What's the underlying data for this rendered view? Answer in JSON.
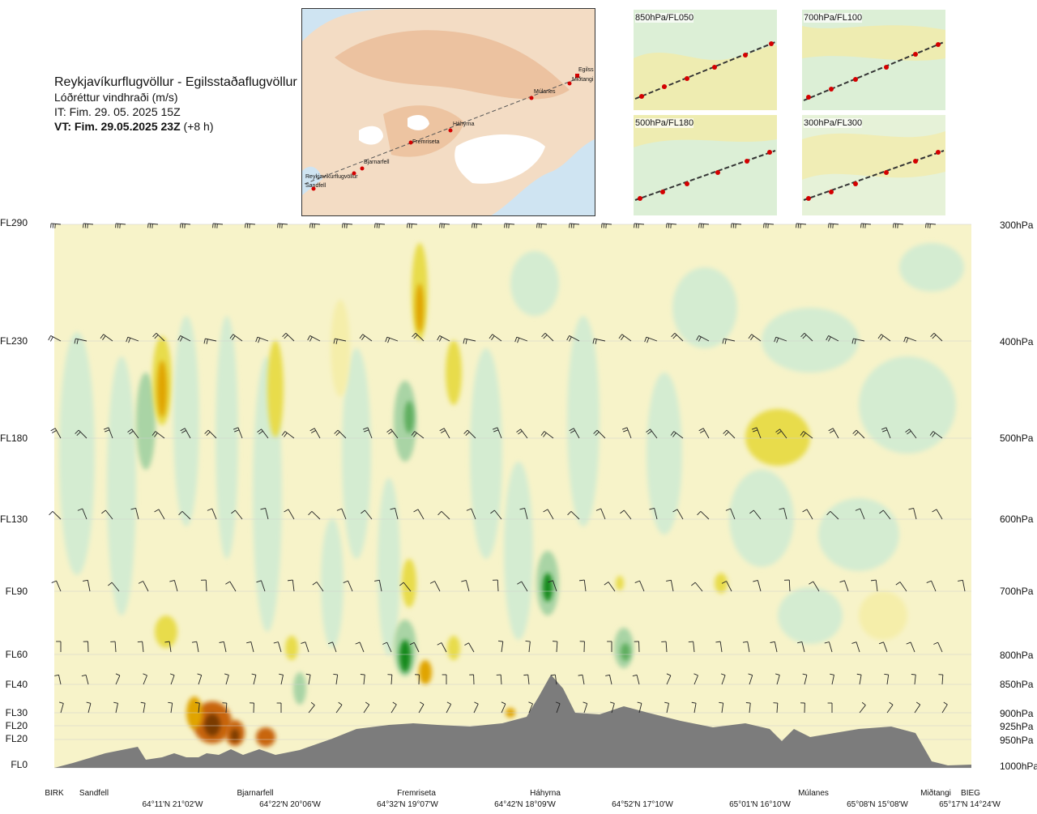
{
  "title": {
    "main": "Reykjavíkurflugvöllur - Egilsstaðaflugvöllur",
    "subtitle": "Lóðréttur vindhraði (m/s)",
    "issue_time": "IT: Fim. 29. 05. 2025 15Z",
    "valid_time_bold": "VT: Fim. 29.05.2025 23Z",
    "valid_time_offset": "(+8 h)"
  },
  "map": {
    "places": [
      "Reykjavíkurflugvöllur",
      "Sandfell",
      "Bjarnarfell",
      "Fremriseta",
      "Háhyrna",
      "Múlanes",
      "Miðtangi",
      "Egilss"
    ]
  },
  "mini_maps": [
    {
      "label": "850hPa/FL050"
    },
    {
      "label": "700hPa/FL100"
    },
    {
      "label": "500hPa/FL180"
    },
    {
      "label": "300hPa/FL300"
    }
  ],
  "chart_data": {
    "type": "heatmap",
    "title": "Lóðréttur vindhraði (m/s)",
    "y_levels_fl": [
      "FL290",
      "FL230",
      "FL180",
      "FL130",
      "FL90",
      "FL60",
      "FL40",
      "FL30",
      "FL20",
      "FL20",
      "FL0"
    ],
    "y_levels_hpa": [
      "300hPa",
      "400hPa",
      "500hPa",
      "600hPa",
      "700hPa",
      "800hPa",
      "850hPa",
      "900hPa",
      "925hPa",
      "950hPa",
      "1000hPa"
    ],
    "pressure_values": [
      300,
      400,
      500,
      600,
      700,
      800,
      850,
      900,
      925,
      950,
      1000
    ],
    "x_places": [
      "BIRK",
      "Sandfell",
      "Bjarnarfell",
      "Fremriseta",
      "Háhyrna",
      "Múlanes",
      "Miðtangi",
      "BIEG"
    ],
    "x_coords": [
      "64°11'N 21°02'W",
      "64°22'N 20°06'W",
      "64°32'N 19°07'W",
      "64°42'N 18°09'W",
      "64°52'N 17°10'W",
      "65°01'N 16°10'W",
      "65°08'N 15°08'W",
      "65°17'N 14°24'W"
    ],
    "colors": {
      "strong_up": "#7a3a05",
      "up_3": "#c8650c",
      "up_2": "#e0a400",
      "up_1": "#e8dc4c",
      "up_weak": "#f5eeaa",
      "neutral": "#fbfbe6",
      "down_weak": "#d4ecd1",
      "down_1": "#a9d4a5",
      "down_2": "#5fae5f",
      "down_3": "#138a1e",
      "terrain": "#7c7c7c"
    },
    "legend": "none"
  }
}
